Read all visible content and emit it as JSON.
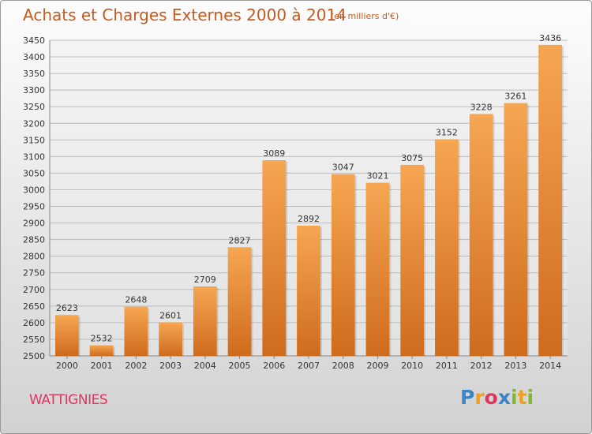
{
  "title": "Achats et Charges Externes 2000 à 2014",
  "subtitle": "(en milliers d'€)",
  "place": "WATTIGNIES",
  "logo": {
    "letters": [
      "P",
      "r",
      "o",
      "x",
      "i",
      "t",
      "i"
    ],
    "colors": [
      "#3a86c8",
      "#f0a020",
      "#e0365f",
      "#3a86c8",
      "#80b830",
      "#f0a020",
      "#80b830"
    ]
  },
  "colors": {
    "bar_top": "#f6a652",
    "bar_bottom": "#cf6b1c",
    "title": "#c75a1e",
    "place": "#e0365f"
  },
  "chart_data": {
    "type": "bar",
    "categories": [
      "2000",
      "2001",
      "2002",
      "2003",
      "2004",
      "2005",
      "2006",
      "2007",
      "2008",
      "2009",
      "2010",
      "2011",
      "2012",
      "2013",
      "2014"
    ],
    "values": [
      2623,
      2532,
      2648,
      2601,
      2709,
      2827,
      3089,
      2892,
      3047,
      3021,
      3075,
      3152,
      3228,
      3261,
      3436
    ],
    "ylim": [
      2500,
      3450
    ],
    "yticks": [
      2500,
      2550,
      2600,
      2650,
      2700,
      2750,
      2800,
      2850,
      2900,
      2950,
      3000,
      3050,
      3100,
      3150,
      3200,
      3250,
      3300,
      3350,
      3400,
      3450
    ],
    "grid": true
  }
}
